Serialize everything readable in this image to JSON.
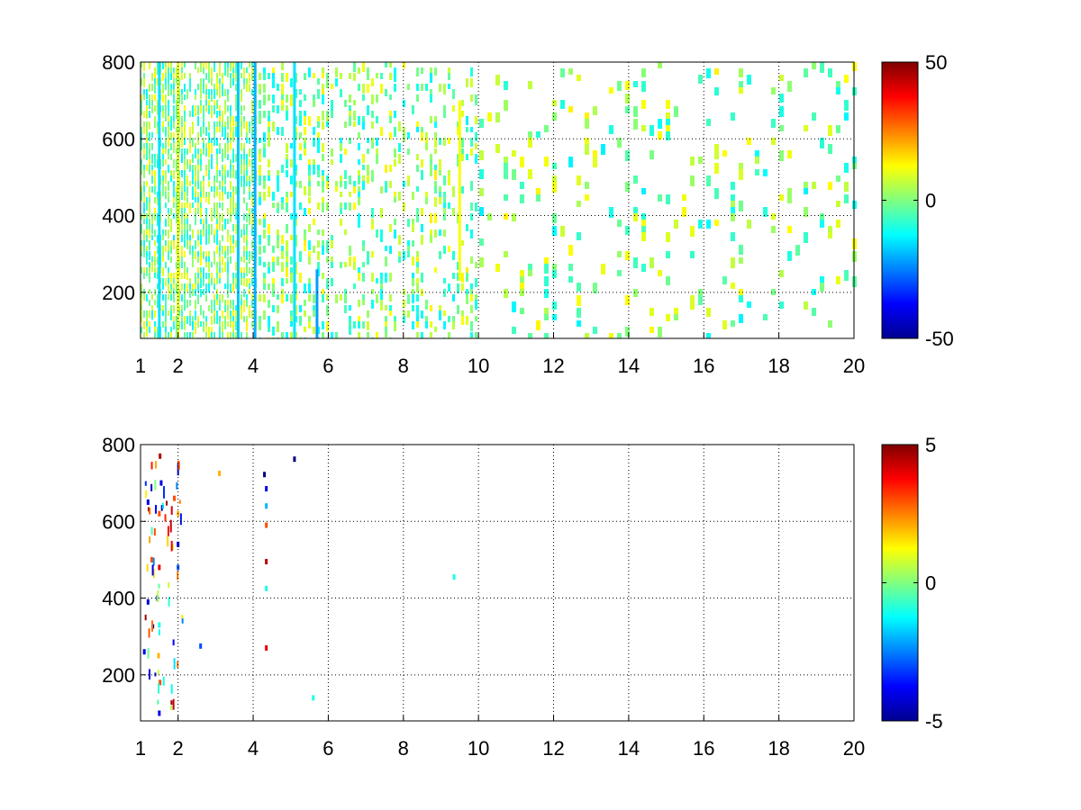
{
  "chart_data": [
    {
      "type": "heatmap",
      "title": "",
      "xlabel": "",
      "ylabel": "",
      "xlim": [
        1,
        20
      ],
      "ylim": [
        80,
        800
      ],
      "x_ticks": [
        "1",
        "2",
        "4",
        "6",
        "8",
        "10",
        "12",
        "14",
        "16",
        "18",
        "20"
      ],
      "x_tick_values": [
        1,
        2,
        4,
        6,
        8,
        10,
        12,
        14,
        16,
        18,
        20
      ],
      "y_ticks": [
        "200",
        "400",
        "600",
        "800"
      ],
      "y_tick_values": [
        200,
        400,
        600,
        800
      ],
      "grid": true,
      "colormap": "jet",
      "clim": [
        -50,
        50
      ],
      "colorbar_ticks": [
        "50",
        "0",
        "-50"
      ],
      "colorbar_tick_values": [
        50,
        0,
        -50
      ],
      "features": [
        {
          "x": 1.5,
          "value": -15,
          "extent": "full"
        },
        {
          "x": 2.0,
          "value": 10,
          "extent": "full"
        },
        {
          "x": 3.6,
          "value": -18,
          "extent": "full"
        },
        {
          "x": 4.05,
          "value": -20,
          "extent": "full"
        },
        {
          "x": 5.1,
          "value": -15,
          "extent": "full"
        },
        {
          "x": 5.7,
          "value": -22,
          "extent": "low"
        },
        {
          "x": 9.5,
          "value": 12,
          "extent": "mid"
        }
      ]
    },
    {
      "type": "heatmap",
      "title": "",
      "xlabel": "",
      "ylabel": "",
      "xlim": [
        1,
        20
      ],
      "ylim": [
        80,
        800
      ],
      "x_ticks": [
        "1",
        "2",
        "4",
        "6",
        "8",
        "10",
        "12",
        "14",
        "16",
        "18",
        "20"
      ],
      "x_tick_values": [
        1,
        2,
        4,
        6,
        8,
        10,
        12,
        14,
        16,
        18,
        20
      ],
      "y_ticks": [
        "200",
        "400",
        "600",
        "800"
      ],
      "y_tick_values": [
        200,
        400,
        600,
        800
      ],
      "grid": true,
      "colormap": "jet",
      "clim": [
        -5,
        5
      ],
      "colorbar_ticks": [
        "5",
        "0",
        "-5"
      ],
      "colorbar_tick_values": [
        5,
        0,
        -5
      ],
      "points": [
        {
          "x": 1.52,
          "y": 770,
          "value": 4.5
        },
        {
          "x": 1.55,
          "y": 700,
          "value": -4
        },
        {
          "x": 1.5,
          "y": 620,
          "value": 3
        },
        {
          "x": 1.5,
          "y": 480,
          "value": 4
        },
        {
          "x": 1.45,
          "y": 400,
          "value": -3
        },
        {
          "x": 1.5,
          "y": 330,
          "value": -1
        },
        {
          "x": 1.48,
          "y": 250,
          "value": 2
        },
        {
          "x": 1.52,
          "y": 180,
          "value": 3
        },
        {
          "x": 1.5,
          "y": 100,
          "value": -4
        },
        {
          "x": 1.9,
          "y": 660,
          "value": 3
        },
        {
          "x": 2.0,
          "y": 620,
          "value": 2
        },
        {
          "x": 2.0,
          "y": 540,
          "value": -4
        },
        {
          "x": 2.0,
          "y": 480,
          "value": -3
        },
        {
          "x": 1.2,
          "y": 650,
          "value": -4
        },
        {
          "x": 1.3,
          "y": 500,
          "value": 3
        },
        {
          "x": 1.2,
          "y": 390,
          "value": -4
        },
        {
          "x": 1.1,
          "y": 260,
          "value": -4
        },
        {
          "x": 3.1,
          "y": 725,
          "value": 2
        },
        {
          "x": 4.3,
          "y": 722,
          "value": -5
        },
        {
          "x": 4.35,
          "y": 685,
          "value": -4
        },
        {
          "x": 4.35,
          "y": 640,
          "value": -2
        },
        {
          "x": 4.35,
          "y": 590,
          "value": 3
        },
        {
          "x": 4.35,
          "y": 495,
          "value": 4.5
        },
        {
          "x": 4.35,
          "y": 425,
          "value": -1
        },
        {
          "x": 4.35,
          "y": 270,
          "value": 4
        },
        {
          "x": 5.1,
          "y": 762,
          "value": -5
        },
        {
          "x": 2.6,
          "y": 275,
          "value": -3
        },
        {
          "x": 9.35,
          "y": 455,
          "value": -1
        },
        {
          "x": 5.6,
          "y": 140,
          "value": -1
        }
      ]
    }
  ]
}
